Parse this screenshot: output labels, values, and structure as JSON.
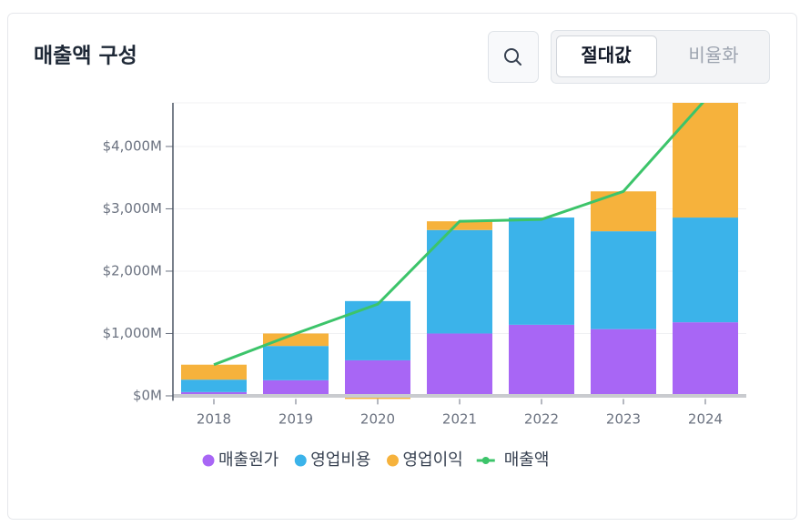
{
  "controls": {
    "options": [
      "절대값",
      "비율화"
    ]
  },
  "chart_data": {
    "type": "bar",
    "title": "매출액 구성",
    "categories": [
      "2018",
      "2019",
      "2020",
      "2021",
      "2022",
      "2023",
      "2024"
    ],
    "series": [
      {
        "name": "매출원가",
        "color": "#a866f5",
        "values": [
          60,
          250,
          570,
          1000,
          1140,
          1070,
          1180
        ]
      },
      {
        "name": "영업비용",
        "color": "#3bb3ea",
        "values": [
          200,
          550,
          950,
          1660,
          1720,
          1570,
          1680
        ]
      },
      {
        "name": "영업이익",
        "color": "#f6b23c",
        "values": [
          240,
          200,
          -50,
          140,
          -30,
          640,
          1890
        ]
      },
      {
        "name": "매출액",
        "color": "#3cc46a",
        "type": "line",
        "values": [
          500,
          1000,
          1470,
          2800,
          2830,
          3280,
          4750
        ]
      }
    ],
    "ylim": [
      -50,
      4700
    ],
    "yticks": [
      {
        "value": 0,
        "label": "$0M"
      },
      {
        "value": 1000,
        "label": "$1,000M"
      },
      {
        "value": 2000,
        "label": "$2,000M"
      },
      {
        "value": 3000,
        "label": "$3,000M"
      },
      {
        "value": 4000,
        "label": "$4,000M"
      }
    ],
    "grid": true,
    "legend": "bottom"
  }
}
